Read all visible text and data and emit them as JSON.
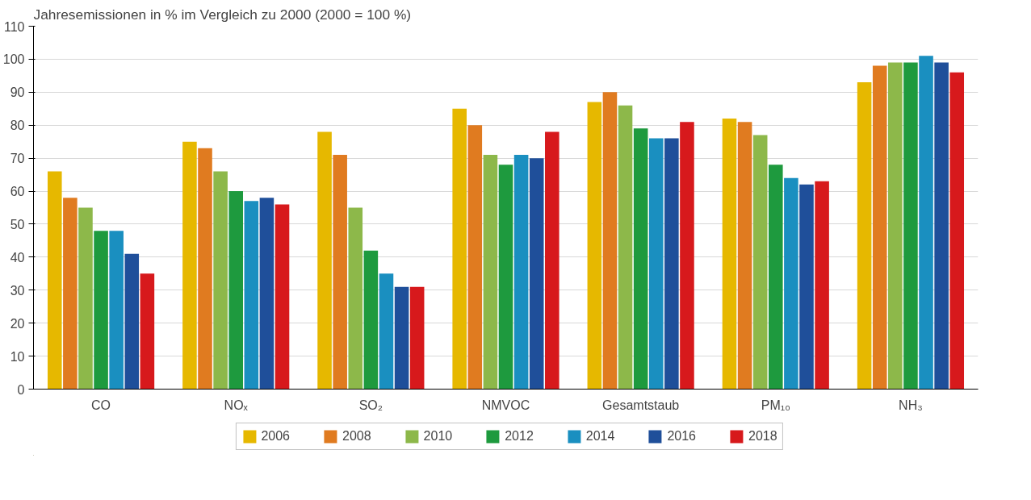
{
  "chart_data": {
    "type": "bar",
    "title": "Jahresemissionen in % im Vergleich zu 2000 (2000 = 100 %)",
    "categories": [
      "CO",
      "NOₓ",
      "SO₂",
      "NMVOC",
      "Gesamtstaub",
      "PM₁₀",
      "NH₃"
    ],
    "series": [
      {
        "name": "2006",
        "color": "#e6b800",
        "values": [
          66,
          75,
          78,
          85,
          87,
          82,
          93
        ]
      },
      {
        "name": "2008",
        "color": "#e07b20",
        "values": [
          58,
          73,
          71,
          80,
          90,
          81,
          98
        ]
      },
      {
        "name": "2010",
        "color": "#8db84a",
        "values": [
          55,
          66,
          55,
          71,
          86,
          77,
          99
        ]
      },
      {
        "name": "2012",
        "color": "#1e9a3e",
        "values": [
          48,
          60,
          42,
          68,
          79,
          68,
          99
        ]
      },
      {
        "name": "2014",
        "color": "#1a8fc0",
        "values": [
          48,
          57,
          35,
          71,
          76,
          64,
          101
        ]
      },
      {
        "name": "2016",
        "color": "#1f4f9a",
        "values": [
          41,
          58,
          31,
          70,
          76,
          62,
          99
        ]
      },
      {
        "name": "2018",
        "color": "#d7191c",
        "values": [
          35,
          56,
          31,
          78,
          81,
          63,
          96
        ]
      }
    ],
    "ylim": [
      0,
      110
    ],
    "yticks": [
      0,
      10,
      20,
      30,
      40,
      50,
      60,
      70,
      80,
      90,
      100,
      110
    ],
    "grid": "y",
    "legend": "bottom"
  }
}
